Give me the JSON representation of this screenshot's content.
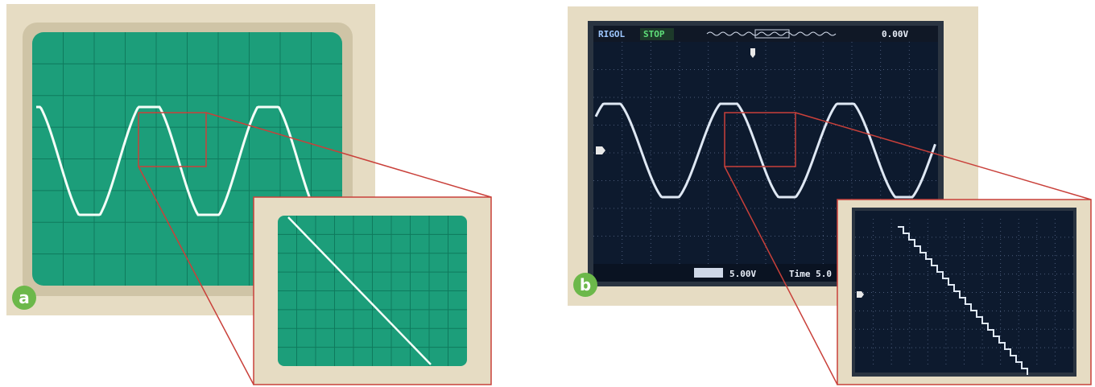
{
  "panels": [
    {
      "label": "a"
    },
    {
      "label": "b",
      "status_bar": {
        "brand": "RIGOL",
        "state": "STOP",
        "trigger_level": "0.00V"
      },
      "bottom_bar": {
        "volts_div": "5.00V",
        "time": "Time 5.0"
      }
    }
  ]
}
